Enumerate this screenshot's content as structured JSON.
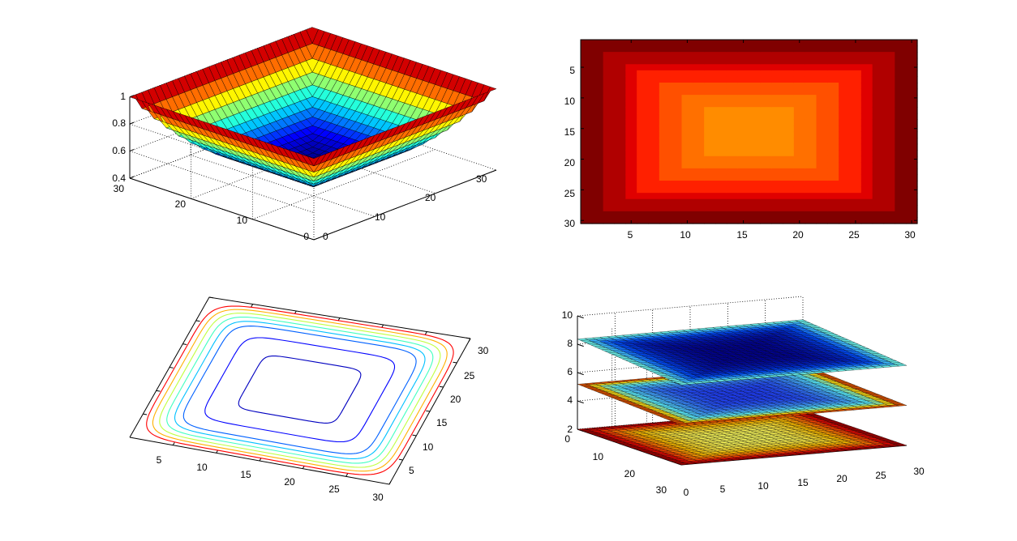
{
  "chart_data": [
    {
      "type": "surface",
      "view": "3d-perspective",
      "x_ticks": [
        "0",
        "10",
        "20",
        "30"
      ],
      "y_ticks": [
        "0",
        "10",
        "20",
        "30"
      ],
      "z_ticks": [
        "0.4",
        "0.6",
        "0.8",
        "1"
      ],
      "zlim": [
        0.4,
        1
      ],
      "grid": true,
      "colormap": "jet",
      "colormap_colors": [
        "#00008f",
        "#0000ff",
        "#0080ff",
        "#00ffff",
        "#80ff80",
        "#ffff00",
        "#ff8000",
        "#ff0000",
        "#800000"
      ],
      "surface_min": 0.45,
      "surface_max": 1
    },
    {
      "type": "heatmap",
      "x_ticks": [
        "5",
        "10",
        "15",
        "20",
        "25",
        "30"
      ],
      "y_ticks": [
        "5",
        "10",
        "15",
        "20",
        "25",
        "30"
      ],
      "xlim": [
        0.5,
        30.5
      ],
      "ylim": [
        0.5,
        30.5
      ],
      "grid": false,
      "colormap": "hot-to-dark-red",
      "colormap_colors": [
        "#800000",
        "#b00000",
        "#e00000",
        "#ff2000",
        "#ff5000",
        "#ff7000",
        "#ff8c00"
      ],
      "note_levels": [
        1.0,
        0.9,
        0.8,
        0.7,
        0.6,
        0.5,
        0.45
      ]
    },
    {
      "type": "contour",
      "view": "3d-perspective",
      "x_ticks": [
        "5",
        "10",
        "15",
        "20",
        "25",
        "30"
      ],
      "y_ticks": [
        "5",
        "10",
        "15",
        "20",
        "25",
        "30"
      ],
      "grid": false,
      "levels": [
        0.5,
        0.6,
        0.7,
        0.75,
        0.8,
        0.85,
        0.9,
        0.95
      ],
      "level_colors": [
        "#0000c0",
        "#0000ff",
        "#0060ff",
        "#00c0ff",
        "#40ffc0",
        "#c0ff40",
        "#ffb000",
        "#ff0000"
      ]
    },
    {
      "type": "slice",
      "view": "3d-perspective",
      "x_ticks": [
        "0",
        "5",
        "10",
        "15",
        "20",
        "25",
        "30"
      ],
      "y_ticks": [
        "0",
        "10",
        "20",
        "30"
      ],
      "z_ticks": [
        "2",
        "4",
        "6",
        "8",
        "10"
      ],
      "zlim": [
        2,
        10
      ],
      "slice_levels": [
        2,
        5,
        8
      ],
      "slice_palettes": [
        [
          "#ffff60",
          "#ffc000",
          "#ff6000",
          "#e00000",
          "#800000"
        ],
        [
          "#2040ff",
          "#40a0ff",
          "#60ffff",
          "#ffd000",
          "#c00000"
        ],
        [
          "#00008f",
          "#0020c0",
          "#0050ff",
          "#40c0ff",
          "#80ffd0"
        ]
      ]
    }
  ]
}
